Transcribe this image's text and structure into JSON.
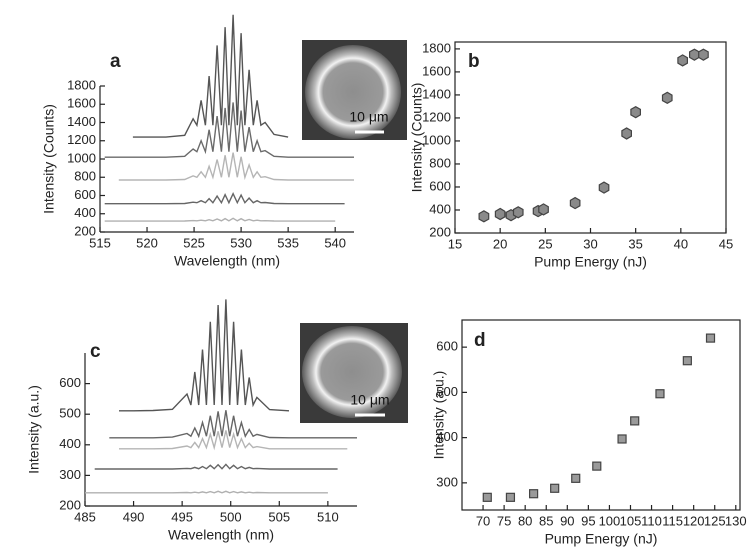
{
  "chart_data": [
    {
      "type": "line",
      "label": "a",
      "x_label": "Wavelength (nm)",
      "y_label": "Intensity (Counts)",
      "xlim": [
        515,
        542
      ],
      "ylim": [
        200,
        1800
      ],
      "xticks": [
        515,
        520,
        525,
        530,
        535,
        540
      ],
      "yticks": [
        200,
        400,
        600,
        800,
        1000,
        1200,
        1400,
        1600,
        1800
      ],
      "inset_scale_label": "10 μm",
      "x": [
        515.5,
        517,
        518.5,
        520,
        522,
        524,
        524.9,
        525.3,
        525.75,
        526.2,
        526.6,
        527.0,
        527.45,
        527.9,
        528.3,
        528.7,
        529.15,
        529.6,
        530.0,
        530.4,
        530.85,
        531.3,
        531.7,
        532.1,
        532.55,
        533.5,
        535,
        537,
        539,
        540,
        541,
        542
      ],
      "series": [
        {
          "color": "#b0b0b0",
          "values": [
            320,
            320,
            320,
            320,
            320,
            321,
            325,
            323,
            329,
            323,
            335,
            323,
            343,
            323,
            347,
            323,
            350,
            323,
            346,
            323,
            337,
            323,
            329,
            323,
            324,
            321,
            320,
            320,
            320,
            320,
            null,
            null
          ]
        },
        {
          "color": "#666666",
          "values": [
            510,
            510,
            510,
            510,
            510,
            512,
            527,
            521,
            543,
            521,
            565,
            521,
            593,
            521,
            609,
            521,
            620,
            521,
            604,
            521,
            571,
            521,
            543,
            521,
            523,
            512,
            510,
            510,
            510,
            510,
            510,
            null
          ]
        },
        {
          "color": "#b5b5b5",
          "values": [
            null,
            770,
            770,
            770,
            770,
            775,
            815,
            800,
            860,
            800,
            920,
            800,
            995,
            800,
            1040,
            800,
            1070,
            800,
            1025,
            800,
            935,
            800,
            860,
            800,
            806,
            775,
            770,
            770,
            770,
            770,
            770,
            770
          ]
        },
        {
          "color": "#6a6a6a",
          "values": [
            1020,
            1020,
            1020,
            1020,
            1020,
            1030,
            1110,
            1080,
            1200,
            1080,
            1320,
            1080,
            1470,
            1080,
            1560,
            1080,
            1620,
            1080,
            1530,
            1080,
            1350,
            1080,
            1200,
            1080,
            1092,
            1030,
            1020,
            1020,
            1020,
            1020,
            1020,
            1020
          ]
        },
        {
          "color": "#555555",
          "values": [
            null,
            null,
            1240,
            1240,
            1240,
            1260,
            1441,
            1370,
            1642,
            1370,
            1910,
            1370,
            2245,
            1370,
            2446,
            1370,
            2580,
            1370,
            2379,
            1370,
            1977,
            1370,
            1642,
            1370,
            1401,
            1270,
            1240,
            null,
            null,
            null,
            null,
            null
          ]
        }
      ]
    },
    {
      "type": "scatter",
      "label": "b",
      "x_label": "Pump Energy (nJ)",
      "y_label": "Intensity (Counts)",
      "marker": "hexagon",
      "color": "#8a8a8a",
      "xlim": [
        15,
        45
      ],
      "ylim": [
        200,
        1860
      ],
      "xticks": [
        15,
        20,
        25,
        30,
        35,
        40,
        45
      ],
      "yticks": [
        200,
        400,
        600,
        800,
        1000,
        1200,
        1400,
        1600,
        1800
      ],
      "x": [
        18.2,
        20,
        21.2,
        22,
        24.2,
        24.8,
        28.3,
        31.5,
        34,
        35,
        38.5,
        40.2,
        41.5,
        42.5
      ],
      "values": [
        345,
        365,
        355,
        380,
        390,
        405,
        460,
        595,
        1065,
        1250,
        1375,
        1700,
        1750,
        1750
      ]
    },
    {
      "type": "line",
      "label": "c",
      "x_label": "Wavelength (nm)",
      "y_label": "Intensity (a.u.)",
      "xlim": [
        485,
        513
      ],
      "ylim": [
        200,
        700
      ],
      "xticks": [
        485,
        490,
        495,
        500,
        505,
        510
      ],
      "yticks": [
        200,
        300,
        400,
        500,
        600
      ],
      "inset_scale_label": "10 μm",
      "x": [
        485,
        486,
        487.5,
        488.5,
        490,
        492,
        494,
        495.5,
        495.9,
        496.3,
        496.7,
        497.1,
        497.5,
        497.9,
        498.3,
        498.7,
        499.1,
        499.5,
        499.9,
        500.3,
        500.7,
        501.1,
        501.5,
        501.9,
        502.3,
        502.7,
        504,
        506,
        508,
        510,
        511,
        512,
        513
      ],
      "series": [
        {
          "color": "#b0b0b0",
          "values": [
            243,
            243,
            243,
            243,
            243,
            243,
            243,
            244,
            243,
            245,
            243,
            246,
            243,
            247,
            243,
            248,
            243,
            248,
            243,
            247,
            243,
            246,
            243,
            245,
            243,
            244,
            243,
            243,
            243,
            243,
            null,
            null,
            null
          ]
        },
        {
          "color": "#666666",
          "values": [
            null,
            321,
            321,
            321,
            321,
            321,
            321,
            323,
            322,
            326,
            322,
            329,
            322,
            333,
            322,
            335,
            322,
            336,
            322,
            333,
            322,
            329,
            322,
            326,
            322,
            323,
            321,
            321,
            321,
            321,
            321,
            null,
            null
          ]
        },
        {
          "color": "#b5b5b5",
          "values": [
            null,
            null,
            null,
            387,
            387,
            387,
            388,
            396,
            391,
            408,
            391,
            420,
            391,
            435,
            391,
            444,
            391,
            447,
            391,
            435,
            391,
            420,
            391,
            405,
            391,
            394,
            387,
            387,
            387,
            387,
            387,
            387,
            null
          ]
        },
        {
          "color": "#666666",
          "values": [
            null,
            null,
            423,
            423,
            423,
            423,
            425,
            437,
            428,
            455,
            428,
            473,
            428,
            495,
            428,
            509,
            428,
            513,
            428,
            495,
            428,
            473,
            428,
            450,
            428,
            434,
            424,
            423,
            423,
            423,
            423,
            423,
            423
          ]
        },
        {
          "color": "#555555",
          "values": [
            null,
            null,
            null,
            511,
            511,
            512,
            516,
            566,
            530,
            638,
            530,
            711,
            530,
            802,
            530,
            857,
            530,
            875,
            530,
            802,
            530,
            711,
            530,
            620,
            530,
            555,
            515,
            511,
            null,
            null,
            null,
            null,
            null
          ]
        }
      ]
    },
    {
      "type": "scatter",
      "label": "d",
      "x_label": "Pump Energy (nJ)",
      "y_label": "Intensity (a.u.)",
      "marker": "square",
      "color": "#9a9a9a",
      "xlim": [
        65,
        131
      ],
      "ylim": [
        240,
        660
      ],
      "xticks": [
        70,
        75,
        80,
        85,
        90,
        95,
        100,
        105,
        110,
        115,
        120,
        125,
        130
      ],
      "yticks": [
        300,
        400,
        500,
        600
      ],
      "x": [
        71,
        76.5,
        82,
        87,
        92,
        97,
        103,
        106,
        112,
        118.5,
        124
      ],
      "values": [
        268,
        268,
        276,
        288,
        310,
        337,
        397,
        437,
        497,
        570,
        620
      ]
    }
  ]
}
